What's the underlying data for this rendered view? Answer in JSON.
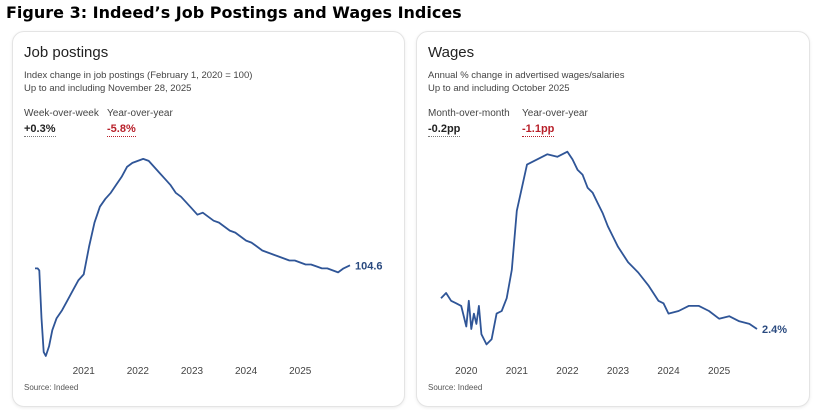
{
  "figure_title": "Figure 3: Indeed’s Job Postings and Wages Indices",
  "colors": {
    "line": "#2f5597",
    "negative": "#b8202a"
  },
  "cards": [
    {
      "title": "Job postings",
      "subtitle1": "Index change in job postings (February 1, 2020 = 100)",
      "subtitle2": "Up to and including November 28, 2025",
      "stat1_label": "Week-over-week",
      "stat1_value": "+0.3%",
      "stat2_label": "Year-over-year",
      "stat2_value": "-5.8%",
      "source": "Source: Indeed"
    },
    {
      "title": "Wages",
      "subtitle1": "Annual % change in advertised wages/salaries",
      "subtitle2": "Up to and including October 2025",
      "stat1_label": "Month-over-month",
      "stat1_value": "-0.2pp",
      "stat2_label": "Year-over-year",
      "stat2_value": "-1.1pp",
      "source": "Source: Indeed"
    }
  ],
  "chart_data": [
    {
      "type": "line",
      "title": "Job postings",
      "xlabel": "",
      "ylabel": "",
      "x_ticks": [
        "2021",
        "2022",
        "2023",
        "2024",
        "2025"
      ],
      "x_tick_values": [
        2021.0,
        2022.0,
        2023.0,
        2024.0,
        2025.0
      ],
      "xlim": [
        2020.1,
        2025.92
      ],
      "ylim": [
        55,
        165
      ],
      "end_label": "104.6",
      "series": [
        {
          "name": "Job postings index",
          "x": [
            2020.1,
            2020.15,
            2020.18,
            2020.22,
            2020.26,
            2020.3,
            2020.36,
            2020.42,
            2020.5,
            2020.6,
            2020.7,
            2020.8,
            2020.9,
            2021.0,
            2021.1,
            2021.2,
            2021.3,
            2021.4,
            2021.5,
            2021.6,
            2021.7,
            2021.8,
            2021.9,
            2022.0,
            2022.1,
            2022.2,
            2022.3,
            2022.4,
            2022.5,
            2022.6,
            2022.7,
            2022.8,
            2022.9,
            2023.0,
            2023.1,
            2023.2,
            2023.3,
            2023.4,
            2023.5,
            2023.6,
            2023.7,
            2023.8,
            2023.9,
            2024.0,
            2024.1,
            2024.2,
            2024.3,
            2024.4,
            2024.5,
            2024.6,
            2024.7,
            2024.8,
            2024.9,
            2025.0,
            2025.1,
            2025.2,
            2025.3,
            2025.4,
            2025.5,
            2025.6,
            2025.7,
            2025.8,
            2025.92
          ],
          "y": [
            103,
            103,
            102,
            78,
            61,
            59,
            64,
            72,
            78,
            82,
            87,
            92,
            97,
            100,
            114,
            126,
            134,
            138,
            141,
            145,
            149,
            154,
            156,
            157,
            158,
            157,
            154,
            151,
            148,
            145,
            141,
            139,
            136,
            133,
            130,
            131,
            129,
            127,
            126,
            124,
            122,
            121,
            119,
            117,
            116,
            114,
            112,
            111,
            110,
            109,
            108,
            107,
            107,
            106,
            105,
            105,
            104,
            103,
            103,
            102,
            101,
            103,
            104.6
          ]
        }
      ]
    },
    {
      "type": "line",
      "title": "Wages",
      "xlabel": "",
      "ylabel": "",
      "x_ticks": [
        "2020",
        "2021",
        "2022",
        "2023",
        "2024",
        "2025"
      ],
      "x_tick_values": [
        2020.0,
        2021.0,
        2022.0,
        2023.0,
        2024.0,
        2025.0
      ],
      "xlim": [
        2019.5,
        2025.75
      ],
      "ylim": [
        1.0,
        9.6
      ],
      "end_label": "2.4%",
      "series": [
        {
          "name": "Advertised wage growth (%)",
          "x": [
            2019.5,
            2019.6,
            2019.7,
            2019.8,
            2019.9,
            2020.0,
            2020.05,
            2020.1,
            2020.15,
            2020.2,
            2020.25,
            2020.3,
            2020.4,
            2020.5,
            2020.6,
            2020.7,
            2020.8,
            2020.9,
            2021.0,
            2021.2,
            2021.4,
            2021.6,
            2021.8,
            2022.0,
            2022.1,
            2022.2,
            2022.3,
            2022.4,
            2022.5,
            2022.6,
            2022.7,
            2022.8,
            2022.9,
            2023.0,
            2023.2,
            2023.4,
            2023.6,
            2023.8,
            2023.9,
            2024.0,
            2024.2,
            2024.4,
            2024.6,
            2024.8,
            2025.0,
            2025.2,
            2025.4,
            2025.6,
            2025.75
          ],
          "y": [
            3.6,
            3.8,
            3.5,
            3.4,
            3.3,
            2.5,
            3.5,
            2.4,
            3.0,
            2.6,
            3.3,
            2.2,
            1.8,
            2.0,
            3.0,
            3.1,
            3.6,
            4.7,
            7.0,
            8.8,
            9.0,
            9.2,
            9.1,
            9.3,
            9.0,
            8.6,
            8.4,
            7.9,
            7.7,
            7.3,
            6.9,
            6.4,
            6.0,
            5.6,
            5.0,
            4.6,
            4.1,
            3.5,
            3.4,
            3.0,
            3.1,
            3.3,
            3.3,
            3.1,
            2.8,
            2.9,
            2.7,
            2.6,
            2.4
          ]
        }
      ]
    }
  ]
}
